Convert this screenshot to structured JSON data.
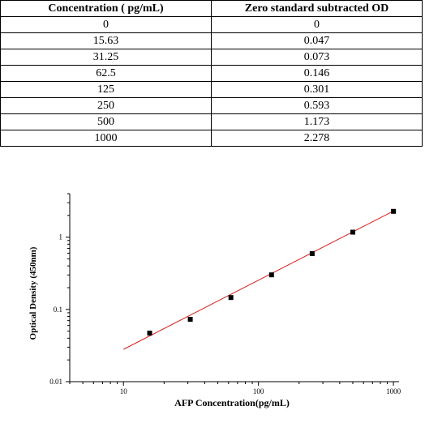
{
  "table": {
    "headers": [
      "Concentration ( pg/mL)",
      "Zero standard subtracted OD"
    ],
    "rows": [
      [
        "0",
        "0"
      ],
      [
        "15.63",
        "0.047"
      ],
      [
        "31.25",
        "0.073"
      ],
      [
        "62.5",
        "0.146"
      ],
      [
        "125",
        "0.301"
      ],
      [
        "250",
        "0.593"
      ],
      [
        "500",
        "1.173"
      ],
      [
        "1000",
        "2.278"
      ]
    ]
  },
  "chart_data": {
    "type": "scatter",
    "title": "",
    "xlabel": "AFP  Concentration(pg/mL)",
    "ylabel": "Optical Density (450nm)",
    "x_scale": "log",
    "y_scale": "log",
    "xlim": [
      4,
      1100
    ],
    "ylim": [
      0.01,
      4
    ],
    "x_ticks": [
      10,
      100,
      1000
    ],
    "x_tick_labels": [
      "10",
      "100",
      "1000"
    ],
    "y_ticks": [
      0.01,
      0.1,
      1
    ],
    "y_tick_labels": [
      "0.01",
      "0.1",
      "1"
    ],
    "grid": false,
    "points": [
      {
        "x": 15.63,
        "y": 0.047
      },
      {
        "x": 31.25,
        "y": 0.073
      },
      {
        "x": 62.5,
        "y": 0.146
      },
      {
        "x": 125,
        "y": 0.301
      },
      {
        "x": 250,
        "y": 0.593
      },
      {
        "x": 500,
        "y": 1.173
      },
      {
        "x": 1000,
        "y": 2.278
      }
    ],
    "fit_line": {
      "x": [
        10,
        1000
      ],
      "y": [
        0.028,
        2.3
      ]
    },
    "colors": {
      "points": "#000000",
      "fit_line": "#d81e1e",
      "axes": "#000000"
    }
  }
}
